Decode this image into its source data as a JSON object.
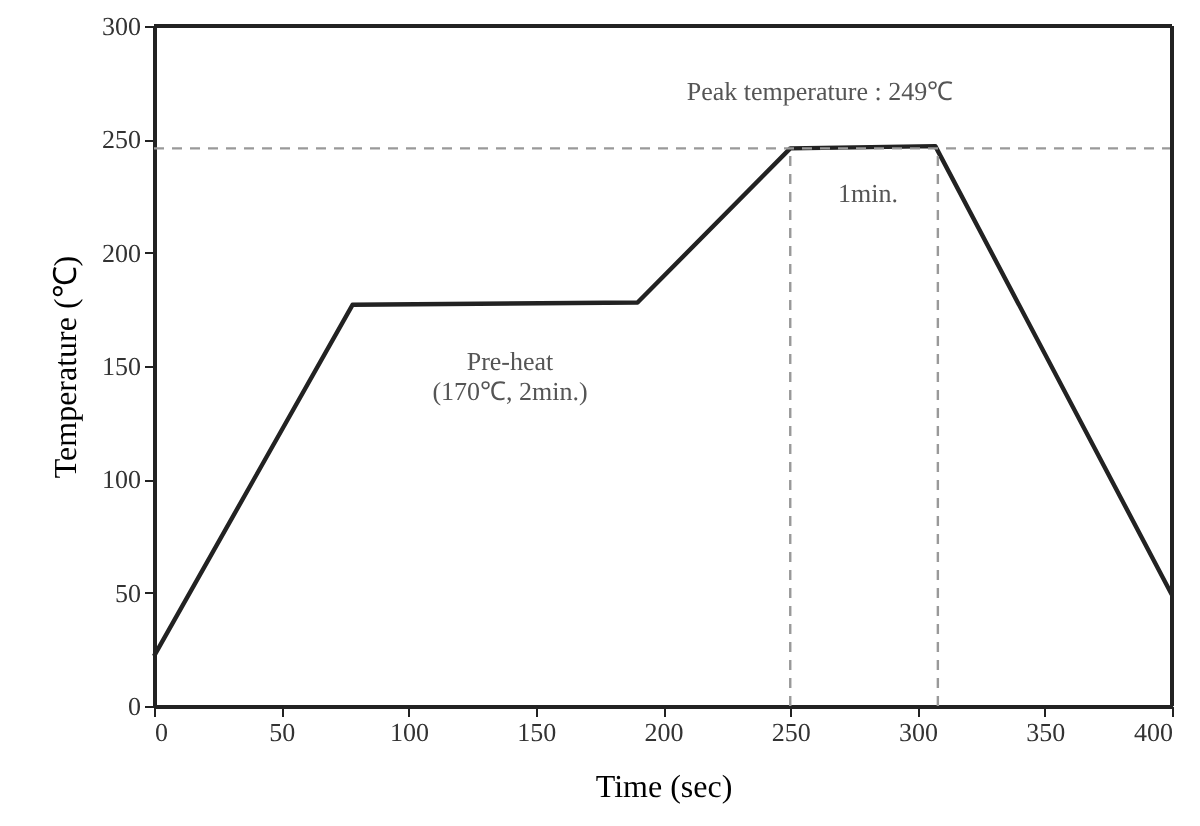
{
  "chart_data": {
    "type": "line",
    "xlabel": "Time (sec)",
    "ylabel": "Temperature (℃)",
    "x": [
      0,
      78,
      190,
      250,
      307,
      400
    ],
    "series": [
      {
        "color": "#222222",
        "values": [
          22,
          177,
          178,
          246,
          247,
          49
        ]
      }
    ],
    "xlim": [
      0,
      400
    ],
    "xticks": [
      0,
      50,
      100,
      150,
      200,
      250,
      300,
      350,
      400
    ],
    "ylim": [
      0,
      300
    ],
    "yticks": [
      0,
      50,
      100,
      150,
      200,
      250,
      300
    ],
    "ref_lines": [
      {
        "axis": "y",
        "value": 246,
        "color": "#999999",
        "line_style": "dashed"
      },
      {
        "axis": "x",
        "value": 250,
        "color": "#999999",
        "line_style": "dashed"
      },
      {
        "axis": "x",
        "value": 308,
        "color": "#999999",
        "line_style": "dashed"
      }
    ],
    "annotations": [
      "Peak temperature : 249℃",
      "1min.",
      "Pre-heat\n(170℃, 2min.)"
    ],
    "grid": false,
    "marker": "none",
    "line_style": "solid"
  }
}
